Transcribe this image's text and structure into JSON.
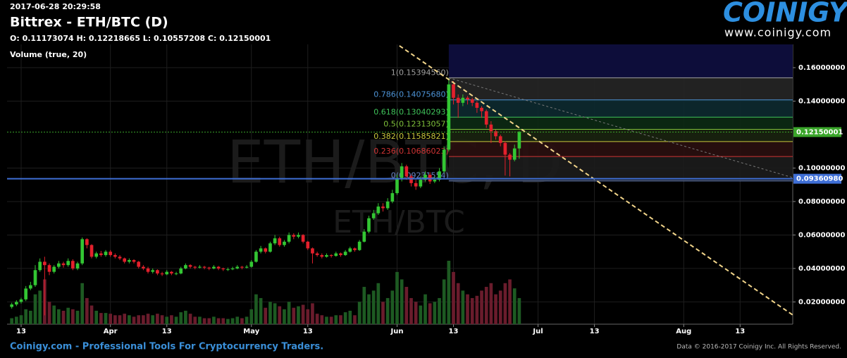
{
  "header": {
    "timestamp": "2017-06-28 20:29:58",
    "title": "Bittrex - ETH/BTC (D)",
    "ohlc": "O: 0.11173074 H: 0.12218665 L: 0.10557208 C: 0.12150001",
    "indicator": "Volume (true, 20)",
    "logo": "COINIGY",
    "logo_url": "www.coinigy.com"
  },
  "footer": {
    "left": "Coinigy.com - Professional Tools For Cryptocurrency Traders.",
    "right": "Data © 2016-2017 Coinigy Inc. All Rights Reserved."
  },
  "chart_data": {
    "type": "candlestick",
    "watermark": "ETH/BTC, D",
    "watermark_sub": "ETH/BTC",
    "up_color": "#33c633",
    "down_color": "#e3202c",
    "volume_up_color": "#1d5a22",
    "volume_down_color": "#6a1c2c",
    "grid": true,
    "xlim": [
      69,
      236.2
    ],
    "ylim": [
      0.0067,
      0.1739
    ],
    "xticks": [
      {
        "value": 72,
        "label": "13"
      },
      {
        "value": 91,
        "label": "Apr"
      },
      {
        "value": 103,
        "label": "13"
      },
      {
        "value": 121,
        "label": "May"
      },
      {
        "value": 133,
        "label": "13"
      },
      {
        "value": 152,
        "label": "Jun"
      },
      {
        "value": 164,
        "label": "13"
      },
      {
        "value": 182,
        "label": "Jul"
      },
      {
        "value": 194,
        "label": "13"
      },
      {
        "value": 213,
        "label": "Aug"
      },
      {
        "value": 225,
        "label": "13"
      }
    ],
    "yticks": [
      {
        "value": 0.02,
        "label": "0.02000000"
      },
      {
        "value": 0.04,
        "label": "0.04000000"
      },
      {
        "value": 0.06,
        "label": "0.06000000"
      },
      {
        "value": 0.08,
        "label": "0.08000000"
      },
      {
        "value": 0.1,
        "label": "0.10000000"
      },
      {
        "value": 0.14,
        "label": "0.14000000"
      },
      {
        "value": 0.16,
        "label": "0.16000000"
      }
    ],
    "x": [
      70,
      71,
      72,
      73,
      74,
      75,
      76,
      77,
      78,
      79,
      80,
      81,
      82,
      83,
      84,
      85,
      86,
      87,
      88,
      89,
      90,
      91,
      92,
      93,
      94,
      95,
      96,
      97,
      98,
      99,
      100,
      101,
      102,
      103,
      104,
      105,
      106,
      107,
      108,
      109,
      110,
      111,
      112,
      113,
      114,
      115,
      116,
      117,
      118,
      119,
      120,
      121,
      122,
      123,
      124,
      125,
      126,
      127,
      128,
      129,
      130,
      131,
      132,
      133,
      134,
      135,
      136,
      137,
      138,
      139,
      140,
      141,
      142,
      143,
      144,
      145,
      146,
      147,
      148,
      149,
      150,
      151,
      152,
      153,
      154,
      155,
      156,
      157,
      158,
      159,
      160,
      161,
      162,
      163,
      164,
      165,
      166,
      167,
      168,
      169,
      170,
      171,
      172,
      173,
      174,
      175,
      176,
      177,
      178
    ],
    "open": [
      0.017,
      0.0185,
      0.02,
      0.0215,
      0.028,
      0.03,
      0.039,
      0.044,
      0.042,
      0.038,
      0.041,
      0.043,
      0.042,
      0.0445,
      0.04,
      0.043,
      0.0575,
      0.054,
      0.047,
      0.049,
      0.048,
      0.05,
      0.048,
      0.047,
      0.046,
      0.044,
      0.045,
      0.044,
      0.041,
      0.04,
      0.038,
      0.039,
      0.037,
      0.0365,
      0.038,
      0.037,
      0.037,
      0.04,
      0.042,
      0.041,
      0.0405,
      0.041,
      0.0405,
      0.04,
      0.041,
      0.04,
      0.0395,
      0.0395,
      0.04,
      0.041,
      0.0405,
      0.041,
      0.044,
      0.05,
      0.052,
      0.05,
      0.055,
      0.058,
      0.054,
      0.056,
      0.06,
      0.059,
      0.06,
      0.056,
      0.052,
      0.049,
      0.048,
      0.047,
      0.048,
      0.0475,
      0.049,
      0.048,
      0.05,
      0.052,
      0.051,
      0.056,
      0.062,
      0.07,
      0.073,
      0.077,
      0.076,
      0.08,
      0.085,
      0.094,
      0.101,
      0.095,
      0.091,
      0.089,
      0.093,
      0.096,
      0.092,
      0.093,
      0.098,
      0.111,
      0.15,
      0.142,
      0.139,
      0.142,
      0.141,
      0.139,
      0.136,
      0.134,
      0.126,
      0.122,
      0.119,
      0.115,
      0.108,
      0.105,
      0.11173074
    ],
    "high": [
      0.0195,
      0.021,
      0.0225,
      0.0295,
      0.032,
      0.042,
      0.046,
      0.047,
      0.043,
      0.042,
      0.0445,
      0.044,
      0.046,
      0.0455,
      0.044,
      0.0585,
      0.058,
      0.0545,
      0.05,
      0.0505,
      0.051,
      0.051,
      0.049,
      0.048,
      0.0465,
      0.046,
      0.0455,
      0.0445,
      0.042,
      0.041,
      0.04,
      0.0395,
      0.038,
      0.039,
      0.0385,
      0.038,
      0.041,
      0.043,
      0.0425,
      0.0415,
      0.042,
      0.0415,
      0.041,
      0.042,
      0.0415,
      0.0405,
      0.0405,
      0.041,
      0.042,
      0.0415,
      0.042,
      0.045,
      0.051,
      0.0535,
      0.0525,
      0.056,
      0.06,
      0.059,
      0.057,
      0.0615,
      0.061,
      0.0615,
      0.0605,
      0.0565,
      0.0525,
      0.05,
      0.049,
      0.049,
      0.0485,
      0.05,
      0.0495,
      0.051,
      0.053,
      0.0525,
      0.057,
      0.0635,
      0.0715,
      0.075,
      0.079,
      0.079,
      0.082,
      0.087,
      0.096,
      0.103,
      0.102,
      0.096,
      0.093,
      0.095,
      0.098,
      0.0975,
      0.095,
      0.1,
      0.113,
      0.1539,
      0.152,
      0.144,
      0.144,
      0.143,
      0.142,
      0.14,
      0.137,
      0.135,
      0.128,
      0.123,
      0.12,
      0.116,
      0.109,
      0.114,
      0.12218665
    ],
    "low": [
      0.016,
      0.0175,
      0.019,
      0.0205,
      0.027,
      0.029,
      0.038,
      0.012,
      0.036,
      0.037,
      0.04,
      0.0405,
      0.041,
      0.039,
      0.039,
      0.042,
      0.052,
      0.046,
      0.046,
      0.047,
      0.047,
      0.047,
      0.046,
      0.045,
      0.043,
      0.043,
      0.043,
      0.04,
      0.039,
      0.037,
      0.037,
      0.036,
      0.0355,
      0.036,
      0.036,
      0.036,
      0.0365,
      0.0395,
      0.04,
      0.0395,
      0.04,
      0.0395,
      0.039,
      0.0395,
      0.039,
      0.0385,
      0.0385,
      0.039,
      0.0395,
      0.0395,
      0.04,
      0.0405,
      0.0435,
      0.049,
      0.049,
      0.0495,
      0.054,
      0.053,
      0.053,
      0.055,
      0.0575,
      0.058,
      0.055,
      0.051,
      0.043,
      0.047,
      0.046,
      0.0465,
      0.0465,
      0.047,
      0.047,
      0.0475,
      0.0495,
      0.05,
      0.0505,
      0.0555,
      0.061,
      0.069,
      0.072,
      0.074,
      0.075,
      0.079,
      0.084,
      0.092,
      0.093,
      0.089,
      0.087,
      0.088,
      0.092,
      0.0905,
      0.091,
      0.092,
      0.097,
      0.11,
      0.138,
      0.13,
      0.137,
      0.138,
      0.137,
      0.133,
      0.13,
      0.124,
      0.115,
      0.117,
      0.113,
      0.0955,
      0.095,
      0.104,
      0.10557208
    ],
    "close": [
      0.0185,
      0.02,
      0.0215,
      0.028,
      0.03,
      0.039,
      0.044,
      0.042,
      0.038,
      0.041,
      0.043,
      0.042,
      0.0445,
      0.04,
      0.043,
      0.0575,
      0.054,
      0.047,
      0.049,
      0.048,
      0.05,
      0.048,
      0.047,
      0.046,
      0.044,
      0.045,
      0.044,
      0.041,
      0.04,
      0.038,
      0.039,
      0.037,
      0.0365,
      0.038,
      0.037,
      0.037,
      0.04,
      0.042,
      0.041,
      0.0405,
      0.041,
      0.0405,
      0.04,
      0.041,
      0.04,
      0.0395,
      0.0395,
      0.04,
      0.041,
      0.0405,
      0.041,
      0.044,
      0.05,
      0.052,
      0.05,
      0.055,
      0.058,
      0.054,
      0.056,
      0.06,
      0.059,
      0.06,
      0.056,
      0.052,
      0.049,
      0.048,
      0.047,
      0.048,
      0.0475,
      0.049,
      0.048,
      0.05,
      0.052,
      0.051,
      0.056,
      0.062,
      0.07,
      0.073,
      0.077,
      0.076,
      0.08,
      0.085,
      0.094,
      0.101,
      0.095,
      0.091,
      0.089,
      0.093,
      0.096,
      0.092,
      0.093,
      0.098,
      0.111,
      0.15,
      0.142,
      0.139,
      0.142,
      0.141,
      0.139,
      0.136,
      0.134,
      0.126,
      0.122,
      0.119,
      0.115,
      0.108,
      0.105,
      0.11173074,
      0.12150001
    ],
    "volume": [
      8,
      10,
      12,
      20,
      18,
      40,
      45,
      60,
      30,
      25,
      20,
      18,
      22,
      20,
      18,
      55,
      35,
      25,
      18,
      15,
      15,
      14,
      12,
      12,
      14,
      12,
      10,
      12,
      12,
      14,
      12,
      14,
      12,
      10,
      12,
      10,
      16,
      18,
      14,
      10,
      10,
      8,
      8,
      10,
      8,
      8,
      7,
      8,
      10,
      8,
      10,
      20,
      40,
      35,
      22,
      30,
      28,
      24,
      20,
      30,
      22,
      24,
      26,
      20,
      28,
      14,
      12,
      10,
      10,
      12,
      12,
      16,
      18,
      12,
      30,
      50,
      40,
      45,
      55,
      30,
      35,
      45,
      70,
      60,
      50,
      35,
      30,
      25,
      40,
      28,
      30,
      35,
      60,
      85,
      70,
      55,
      45,
      40,
      35,
      38,
      45,
      50,
      55,
      40,
      45,
      55,
      60,
      48,
      35
    ],
    "levels": [
      {
        "value": 0.0936098,
        "label": "0.09360980",
        "color": "#3f6fd6"
      },
      {
        "value": 0.12150001,
        "label": "0.12150001",
        "color": "#3aa52a"
      }
    ],
    "trendlines": [
      {
        "x": [
          152.5,
          236.2
        ],
        "y": [
          0.1731,
          0.0122
        ],
        "color": "#f2d58a"
      },
      {
        "x": [
          163,
          236.2
        ],
        "y": [
          0.1539,
          0.0943
        ],
        "color": "#777777"
      }
    ],
    "fibonacci": {
      "x_start": 163,
      "top_color": "#0d0d3a",
      "levels": [
        {
          "value": 0.1539456,
          "label": "1(0.15394560)",
          "color": "#a0a0a0",
          "band": "#262626"
        },
        {
          "value": 0.1407568,
          "label": "0.786(0.14075680)",
          "color": "#4d93d6",
          "band": "#0d2a30"
        },
        {
          "value": 0.13040293,
          "label": "0.618(0.13040293)",
          "color": "#3fc35a",
          "band": "#0c2a14"
        },
        {
          "value": 0.12313057,
          "label": "0.5(0.12313057)",
          "color": "#7fc03a",
          "band": "#1a2410"
        },
        {
          "value": 0.11585821,
          "label": "0.382(0.11585821)",
          "color": "#c8c83c",
          "band": "#2a1010"
        },
        {
          "value": 0.10686023,
          "label": "0.236(0.10686023)",
          "color": "#d03434",
          "band": "#1c1c1c"
        },
        {
          "value": 0.09231554,
          "label": "0(0.09231554)",
          "color": "#6a86c8",
          "band": "#000000"
        }
      ]
    }
  }
}
